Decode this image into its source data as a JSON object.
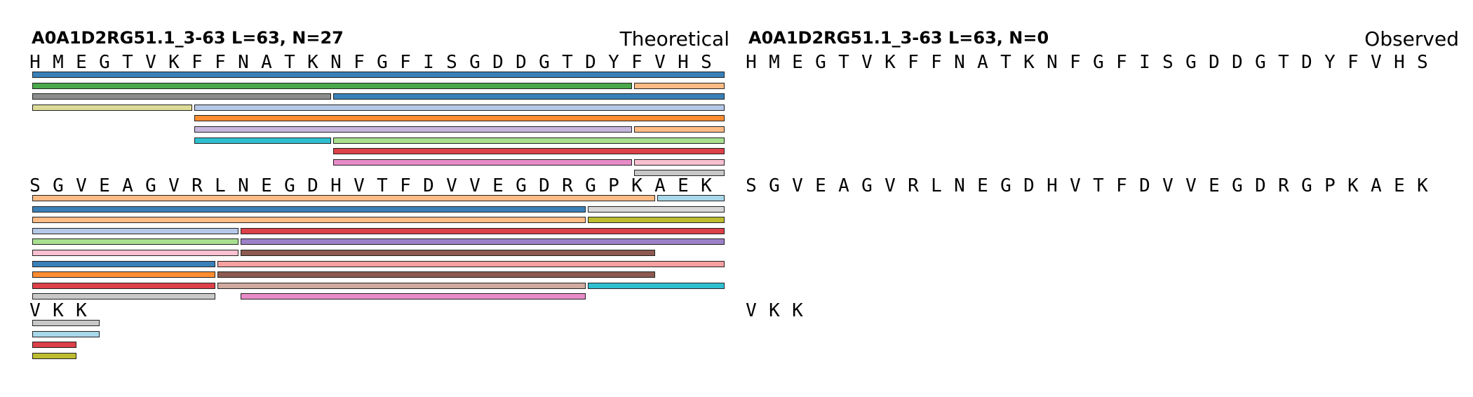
{
  "theoretical": {
    "title": "A0A1D2RG51.1_3-63  L=63, N=27",
    "label": "Theoretical"
  },
  "observed": {
    "title": "A0A1D2RG51.1_3-63  L=63, N=0",
    "label": "Observed"
  },
  "rows": [
    [
      "H",
      "M",
      "E",
      "G",
      "T",
      "V",
      "K",
      "F",
      "F",
      "N",
      "A",
      "T",
      "K",
      "N",
      "F",
      "G",
      "F",
      "I",
      "S",
      "G",
      "D",
      "D",
      "G",
      "T",
      "D",
      "Y",
      "F",
      "V",
      "H",
      "S"
    ],
    [
      "S",
      "G",
      "V",
      "E",
      "A",
      "G",
      "V",
      "R",
      "L",
      "N",
      "E",
      "G",
      "D",
      "H",
      "V",
      "T",
      "F",
      "D",
      "V",
      "V",
      "E",
      "G",
      "D",
      "R",
      "G",
      "P",
      "K",
      "A",
      "E",
      "K"
    ],
    [
      "V",
      "K",
      "K"
    ]
  ],
  "peptides": [
    [
      {
        "start": 0,
        "end": 29,
        "color": "#3a80b8"
      },
      {
        "start": 0,
        "end": 25,
        "color": "#4aa84a"
      },
      {
        "start": 26,
        "end": 29,
        "color": "#ffbb85"
      },
      {
        "start": 0,
        "end": 12,
        "color": "#8c8c8c"
      },
      {
        "start": 13,
        "end": 29,
        "color": "#3a80b8"
      },
      {
        "start": 0,
        "end": 6,
        "color": "#dcdc98"
      },
      {
        "start": 7,
        "end": 29,
        "color": "#b5c8e8"
      },
      {
        "start": 7,
        "end": 29,
        "color": "#ff8c30"
      },
      {
        "start": 7,
        "end": 25,
        "color": "#c6b6dc"
      },
      {
        "start": 26,
        "end": 29,
        "color": "#ffbb85"
      },
      {
        "start": 7,
        "end": 12,
        "color": "#2ec0d0"
      },
      {
        "start": 13,
        "end": 29,
        "color": "#a8e090"
      },
      {
        "start": 13,
        "end": 29,
        "color": "#dc4048"
      },
      {
        "start": 13,
        "end": 25,
        "color": "#e88cc8"
      },
      {
        "start": 26,
        "end": 29,
        "color": "#f8c0d0"
      },
      {
        "start": 26,
        "end": 29,
        "color": "#c8c8c8"
      }
    ],
    [
      {
        "start": 0,
        "end": 26,
        "color": "#ffbb85"
      },
      {
        "start": 27,
        "end": 29,
        "color": "#a8d8ea"
      },
      {
        "start": 0,
        "end": 23,
        "color": "#3a80b8"
      },
      {
        "start": 24,
        "end": 29,
        "color": "#d8d8d8"
      },
      {
        "start": 0,
        "end": 23,
        "color": "#ffbb85"
      },
      {
        "start": 24,
        "end": 29,
        "color": "#bcbc30"
      },
      {
        "start": 0,
        "end": 8,
        "color": "#b5c8e8"
      },
      {
        "start": 9,
        "end": 29,
        "color": "#dc4048"
      },
      {
        "start": 0,
        "end": 8,
        "color": "#a8e090"
      },
      {
        "start": 9,
        "end": 29,
        "color": "#9c80c8"
      },
      {
        "start": 0,
        "end": 8,
        "color": "#f8c0d0"
      },
      {
        "start": 9,
        "end": 26,
        "color": "#8c5a50"
      },
      {
        "start": 0,
        "end": 7,
        "color": "#3a80b8"
      },
      {
        "start": 8,
        "end": 29,
        "color": "#f8a0a0"
      },
      {
        "start": 0,
        "end": 7,
        "color": "#ff8c30"
      },
      {
        "start": 8,
        "end": 26,
        "color": "#8c5a50"
      },
      {
        "start": 0,
        "end": 7,
        "color": "#dc4048"
      },
      {
        "start": 8,
        "end": 23,
        "color": "#d0aaa0"
      },
      {
        "start": 24,
        "end": 29,
        "color": "#2ec0d0"
      },
      {
        "start": 0,
        "end": 7,
        "color": "#c8c8c8"
      },
      {
        "start": 9,
        "end": 23,
        "color": "#e88cc8"
      }
    ],
    [
      {
        "start": 0,
        "end": 2,
        "color": "#c8c8c8"
      },
      {
        "start": 0,
        "end": 2,
        "color": "#a8d8ea"
      },
      {
        "start": 0,
        "end": 1,
        "color": "#dc4048"
      },
      {
        "start": 0,
        "end": 1,
        "color": "#bcbc30"
      }
    ]
  ]
}
